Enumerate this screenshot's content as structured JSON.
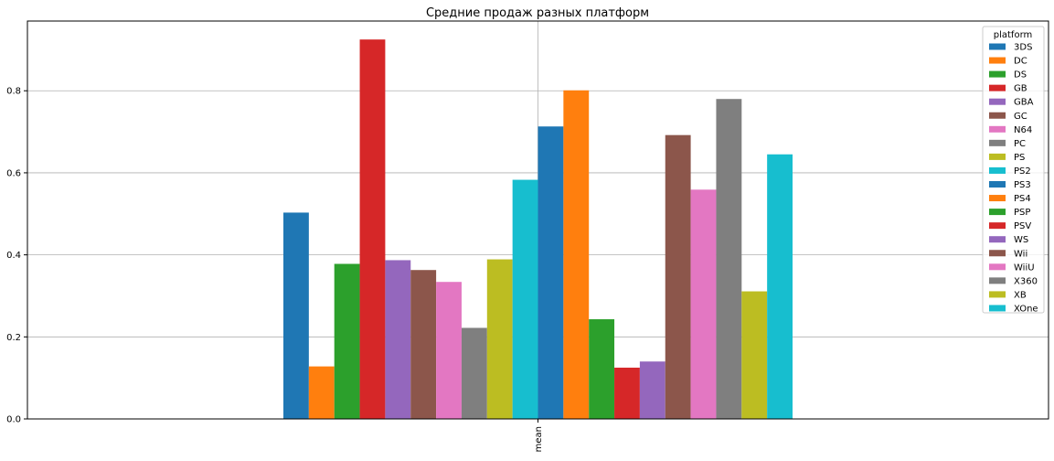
{
  "chart_data": {
    "type": "bar",
    "title": "Средние продаж разных платформ",
    "categories": [
      "mean"
    ],
    "xlabel": "",
    "ylabel": "",
    "ylim": [
      0,
      0.97
    ],
    "yticks": [
      0.0,
      0.2,
      0.4,
      0.6,
      0.8
    ],
    "ytick_labels": [
      "0.0",
      "0.2",
      "0.4",
      "0.6",
      "0.8"
    ],
    "grid": true,
    "legend_title": "platform",
    "legend_position": "top-right",
    "series": [
      {
        "name": "3DS",
        "values": [
          0.503
        ],
        "color": "#1f77b4"
      },
      {
        "name": "DC",
        "values": [
          0.128
        ],
        "color": "#ff7f0e"
      },
      {
        "name": "DS",
        "values": [
          0.378
        ],
        "color": "#2ca02c"
      },
      {
        "name": "GB",
        "values": [
          0.925
        ],
        "color": "#d62728"
      },
      {
        "name": "GBA",
        "values": [
          0.387
        ],
        "color": "#9467bd"
      },
      {
        "name": "GC",
        "values": [
          0.363
        ],
        "color": "#8c564b"
      },
      {
        "name": "N64",
        "values": [
          0.334
        ],
        "color": "#e377c2"
      },
      {
        "name": "PC",
        "values": [
          0.222
        ],
        "color": "#7f7f7f"
      },
      {
        "name": "PS",
        "values": [
          0.389
        ],
        "color": "#bcbd22"
      },
      {
        "name": "PS2",
        "values": [
          0.583
        ],
        "color": "#17becf"
      },
      {
        "name": "PS3",
        "values": [
          0.713
        ],
        "color": "#1f77b4"
      },
      {
        "name": "PS4",
        "values": [
          0.801
        ],
        "color": "#ff7f0e"
      },
      {
        "name": "PSP",
        "values": [
          0.243
        ],
        "color": "#2ca02c"
      },
      {
        "name": "PSV",
        "values": [
          0.125
        ],
        "color": "#d62728"
      },
      {
        "name": "WS",
        "values": [
          0.14
        ],
        "color": "#9467bd"
      },
      {
        "name": "Wii",
        "values": [
          0.692
        ],
        "color": "#8c564b"
      },
      {
        "name": "WiiU",
        "values": [
          0.559
        ],
        "color": "#e377c2"
      },
      {
        "name": "X360",
        "values": [
          0.78
        ],
        "color": "#7f7f7f"
      },
      {
        "name": "XB",
        "values": [
          0.311
        ],
        "color": "#bcbd22"
      },
      {
        "name": "XOne",
        "values": [
          0.645
        ],
        "color": "#17becf"
      }
    ]
  }
}
